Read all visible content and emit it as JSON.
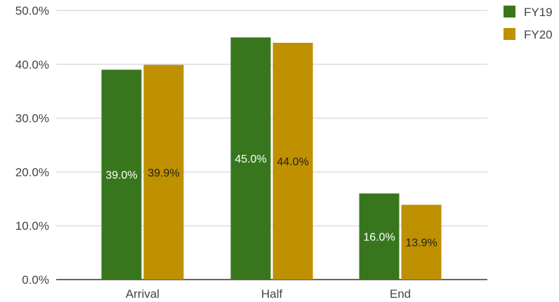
{
  "chart_data": {
    "type": "bar",
    "title": "",
    "xlabel": "",
    "ylabel": "",
    "categories": [
      "Arrival",
      "Half",
      "End"
    ],
    "series": [
      {
        "name": "FY19",
        "color": "#38761d",
        "label_color": "#ffffff",
        "values": [
          39.0,
          45.0,
          16.0
        ],
        "labels": [
          "39.0%",
          "45.0%",
          "16.0%"
        ]
      },
      {
        "name": "FY20",
        "color": "#bf9000",
        "label_color": "#222222",
        "values": [
          39.9,
          44.0,
          13.9
        ],
        "labels": [
          "39.9%",
          "44.0%",
          "13.9%"
        ]
      }
    ],
    "ylim": [
      0,
      50
    ],
    "yticks": [
      {
        "value": 0,
        "label": "0.0%"
      },
      {
        "value": 10,
        "label": "10.0%"
      },
      {
        "value": 20,
        "label": "20.0%"
      },
      {
        "value": 30,
        "label": "30.0%"
      },
      {
        "value": 40,
        "label": "40.0%"
      },
      {
        "value": 50,
        "label": "50.0%"
      }
    ],
    "grid": true,
    "legend_position": "top-right",
    "gridline_color": "#cccccc",
    "baseline_color": "#333333"
  }
}
